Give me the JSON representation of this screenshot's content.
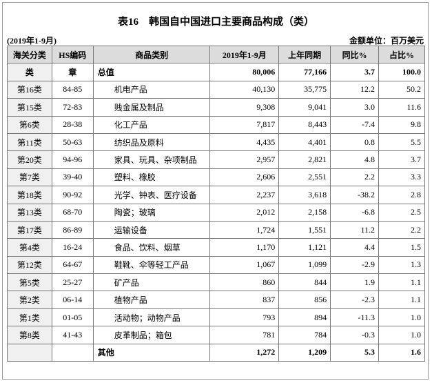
{
  "header": {
    "title": "表16　韩国自中国进口主要商品构成（类）",
    "period": "(2019年1-9月)",
    "unit": "金额单位：百万美元"
  },
  "table": {
    "columns": [
      "海关分类",
      "HS编码",
      "商品类别",
      "2019年1-9月",
      "上年同期",
      "同比%",
      "占比%"
    ],
    "rows": [
      [
        "类",
        "章",
        "总值",
        "80,006",
        "77,166",
        "3.7",
        "100.0"
      ],
      [
        "第16类",
        "84-85",
        "机电产品",
        "40,130",
        "35,775",
        "12.2",
        "50.2"
      ],
      [
        "第15类",
        "72-83",
        "贱金属及制品",
        "9,308",
        "9,041",
        "3.0",
        "11.6"
      ],
      [
        "第6类",
        "28-38",
        "化工产品",
        "7,817",
        "8,443",
        "-7.4",
        "9.8"
      ],
      [
        "第11类",
        "50-63",
        "纺织品及原料",
        "4,435",
        "4,401",
        "0.8",
        "5.5"
      ],
      [
        "第20类",
        "94-96",
        "家具、玩具、杂项制品",
        "2,957",
        "2,821",
        "4.8",
        "3.7"
      ],
      [
        "第7类",
        "39-40",
        "塑料、橡胶",
        "2,606",
        "2,551",
        "2.2",
        "3.3"
      ],
      [
        "第18类",
        "90-92",
        "光学、钟表、医疗设备",
        "2,237",
        "3,618",
        "-38.2",
        "2.8"
      ],
      [
        "第13类",
        "68-70",
        "陶瓷；玻璃",
        "2,012",
        "2,158",
        "-6.8",
        "2.5"
      ],
      [
        "第17类",
        "86-89",
        "运输设备",
        "1,724",
        "1,551",
        "11.2",
        "2.2"
      ],
      [
        "第4类",
        "16-24",
        "食品、饮料、烟草",
        "1,170",
        "1,121",
        "4.4",
        "1.5"
      ],
      [
        "第12类",
        "64-67",
        "鞋靴、伞等轻工产品",
        "1,067",
        "1,099",
        "-2.9",
        "1.3"
      ],
      [
        "第5类",
        "25-27",
        "矿产品",
        "860",
        "844",
        "1.9",
        "1.1"
      ],
      [
        "第2类",
        "06-14",
        "植物产品",
        "837",
        "856",
        "-2.3",
        "1.1"
      ],
      [
        "第1类",
        "01-05",
        "活动物；动物产品",
        "793",
        "894",
        "-11.3",
        "1.0"
      ],
      [
        "第8类",
        "41-43",
        "皮革制品；箱包",
        "781",
        "784",
        "-0.3",
        "1.0"
      ],
      [
        null,
        null,
        "其他",
        "1,272",
        "1,209",
        "5.3",
        "1.6"
      ]
    ]
  }
}
